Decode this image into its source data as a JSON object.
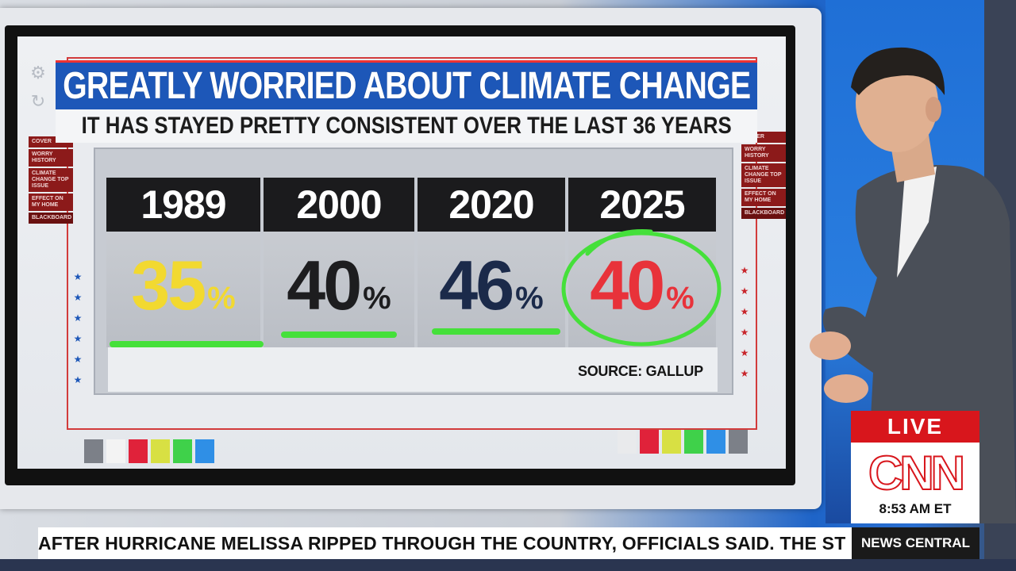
{
  "graphic": {
    "title": "GREATLY WORRIED ABOUT CLIMATE CHANGE",
    "subtitle": "IT HAS STAYED PRETTY CONSISTENT OVER THE LAST 36 YEARS",
    "source": "SOURCE: GALLUP",
    "left_menu": [
      "COVER",
      "WORRY HISTORY",
      "CLIMATE CHANGE TOP ISSUE",
      "EFFECT ON MY HOME",
      "BLACKBOARD"
    ],
    "right_menu": [
      "COVER",
      "WORRY HISTORY",
      "CLIMATE CHANGE TOP ISSUE",
      "EFFECT ON MY HOME",
      "BLACKBOARD"
    ],
    "columns": [
      {
        "year": "1989",
        "value": "35",
        "pct": "%",
        "color": "#f2d930"
      },
      {
        "year": "2000",
        "value": "40",
        "pct": "%",
        "color": "#1d1d1f"
      },
      {
        "year": "2020",
        "value": "46",
        "pct": "%",
        "color": "#1b2a4a"
      },
      {
        "year": "2025",
        "value": "40",
        "pct": "%",
        "color": "#e8323a"
      }
    ],
    "highlight_color": "#45e03a",
    "swatches_left": [
      "#7c8088",
      "#f3f3f3",
      "#e0223a",
      "#d8e043",
      "#3fd14a",
      "#2f8fe6"
    ],
    "swatches_right": [
      "#e9eaec",
      "#e0223a",
      "#d8e043",
      "#3fd14a",
      "#2f8fe6",
      "#7c8088"
    ]
  },
  "chart_data": {
    "type": "table",
    "categories": [
      "1989",
      "2000",
      "2020",
      "2025"
    ],
    "values": [
      35,
      40,
      46,
      40
    ],
    "title": "GREATLY WORRIED ABOUT CLIMATE CHANGE",
    "subtitle": "IT HAS STAYED PRETTY CONSISTENT OVER THE LAST 36 YEARS",
    "unit": "%",
    "source": "SOURCE: GALLUP"
  },
  "bug": {
    "live": "LIVE",
    "network": "CNN",
    "time": "8:53 AM ET",
    "show": "NEWS CENTRAL",
    "brand_color": "#d8161c"
  },
  "ticker": {
    "text": "AFTER HURRICANE MELISSA RIPPED THROUGH THE COUNTRY, OFFICIALS SAID. THE ST"
  }
}
